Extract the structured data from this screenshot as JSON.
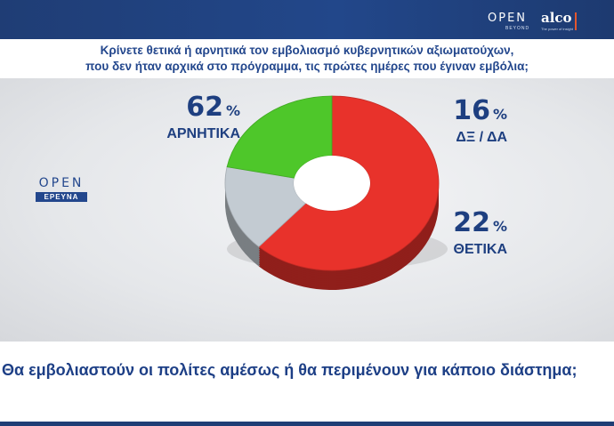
{
  "header": {
    "brand_open": "OPEN",
    "brand_beyond": "BEYOND",
    "brand_alco": "alco",
    "brand_alco_sub": "The power of insight"
  },
  "question": {
    "line1": "Κρίνετε θετικά ή αρνητικά τον εμβολιασμό κυβερνητικών αξιωματούχων,",
    "line2": "που δεν ήταν αρχικά στο πρόγραμμα, τις πρώτες ημέρες που έγιναν εμβόλια;"
  },
  "logo": {
    "word": "OPEN",
    "tag": "ΕΡΕΥΝΑ"
  },
  "colors": {
    "negative": "#e8322b",
    "neutral": "#c3cbd2",
    "positive": "#4ec72a",
    "text": "#1e3f80"
  },
  "chart_data": {
    "type": "pie",
    "subtype": "donut",
    "title": "Κρίνετε θετικά ή αρνητικά τον εμβολιασμό κυβερνητικών αξιωματούχων, που δεν ήταν αρχικά στο πρόγραμμα, τις πρώτες ημέρες που έγιναν εμβόλια;",
    "unit": "%",
    "slices": [
      {
        "label": "ΑΡΝΗΤΙΚΑ",
        "value": 62,
        "display": "62",
        "color": "#e8322b"
      },
      {
        "label": "ΔΞ / ΔΑ",
        "value": 16,
        "display": "16",
        "color": "#c3cbd2"
      },
      {
        "label": "ΘΕΤΙΚΑ",
        "value": 22,
        "display": "22",
        "color": "#4ec72a"
      }
    ],
    "percent_sign": "%"
  },
  "caption": {
    "text": "Θα εμβολιαστούν οι πολίτες αμέσως ή θα περιμένουν για κάποιο διάστημα;"
  }
}
